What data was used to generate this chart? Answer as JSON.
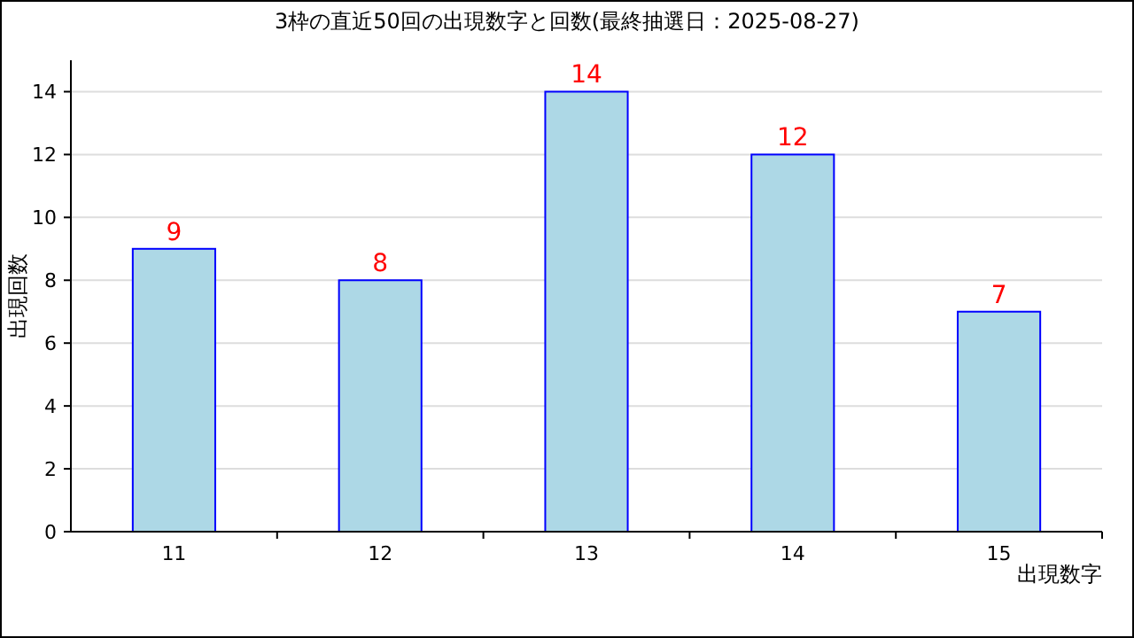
{
  "chart_data": {
    "type": "bar",
    "title": "3枠の直近50回の出現数字と回数(最終抽選日：2025-08-27)",
    "xlabel": "出現数字",
    "ylabel": "出現回数",
    "categories": [
      "11",
      "12",
      "13",
      "14",
      "15"
    ],
    "series": [
      {
        "color": "#add8e6",
        "values": [
          9,
          8,
          14,
          12,
          7
        ]
      }
    ],
    "ylim": [
      0,
      15
    ],
    "yticks": [
      0,
      2,
      4,
      6,
      8,
      10,
      12,
      14
    ],
    "grid": "y",
    "data_labels": true
  }
}
